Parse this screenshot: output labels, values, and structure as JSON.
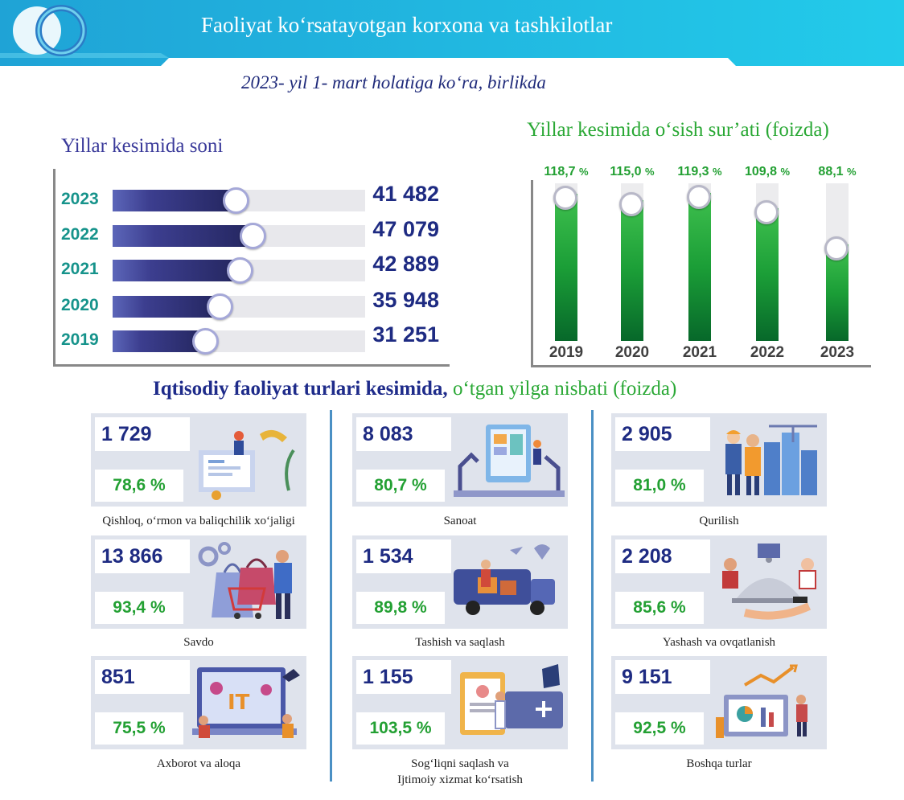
{
  "header": {
    "title": "Faoliyat ko‘rsatayotgan korxona va tashkilotlar",
    "subtitle": "2023- yil 1- mart holatiga ko‘ra, birlikda",
    "colors": {
      "banner": "#26c0e6",
      "banner_dark": "#1e9fd0"
    }
  },
  "chart_data": [
    {
      "type": "bar",
      "orientation": "horizontal",
      "title": "Yillar kesimida soni",
      "categories": [
        "2023",
        "2022",
        "2021",
        "2020",
        "2019"
      ],
      "values": [
        41482,
        47079,
        42889,
        35948,
        31251
      ],
      "value_labels": [
        "41 482",
        "47 079",
        "42 889",
        "35 948",
        "31 251"
      ],
      "xlim": [
        0,
        85000
      ],
      "grid": false
    },
    {
      "type": "bar",
      "orientation": "vertical",
      "title": "Yillar kesimida o‘sish sur’ati (foizda)",
      "categories": [
        "2019",
        "2020",
        "2021",
        "2022",
        "2023"
      ],
      "values": [
        118.7,
        115.0,
        119.3,
        109.8,
        88.1
      ],
      "value_labels": [
        "118,7",
        "115,0",
        "119,3",
        "109,8",
        "88,1"
      ],
      "unit": "%",
      "ylim": [
        30,
        125
      ],
      "grid": false
    }
  ],
  "sectors": {
    "title_bold": "Iqtisodiy faoliyat turlari kesimida,",
    "title_rest": " o‘tgan yilga nisbati (foizda)",
    "items": [
      {
        "count": "1 729",
        "percent": "78,6 %",
        "label": "Qishloq, o‘rmon va baliqchilik xo‘jaligi",
        "icon": "agriculture-illustration"
      },
      {
        "count": "8 083",
        "percent": "80,7 %",
        "label": "Sanoat",
        "icon": "industry-illustration"
      },
      {
        "count": "2 905",
        "percent": "81,0 %",
        "label": "Qurilish",
        "icon": "construction-illustration"
      },
      {
        "count": "13 866",
        "percent": "93,4 %",
        "label": "Savdo",
        "icon": "shopping-illustration"
      },
      {
        "count": "1 534",
        "percent": "89,8 %",
        "label": "Tashish va saqlash",
        "icon": "delivery-illustration"
      },
      {
        "count": "2 208",
        "percent": "85,6 %",
        "label": "Yashash va ovqatlanish",
        "icon": "hotel-food-illustration"
      },
      {
        "count": "851",
        "percent": "75,5 %",
        "label": "Axborot va aloqa",
        "icon": "it-illustration"
      },
      {
        "count": "1 155",
        "percent": "103,5 %",
        "label": "Sog‘liqni saqlash va",
        "label2": "Ijtimoiy xizmat ko‘rsatish",
        "icon": "healthcare-illustration"
      },
      {
        "count": "9 151",
        "percent": "92,5 %",
        "label": "Boshqa turlar",
        "icon": "other-analytics-illustration"
      }
    ]
  }
}
